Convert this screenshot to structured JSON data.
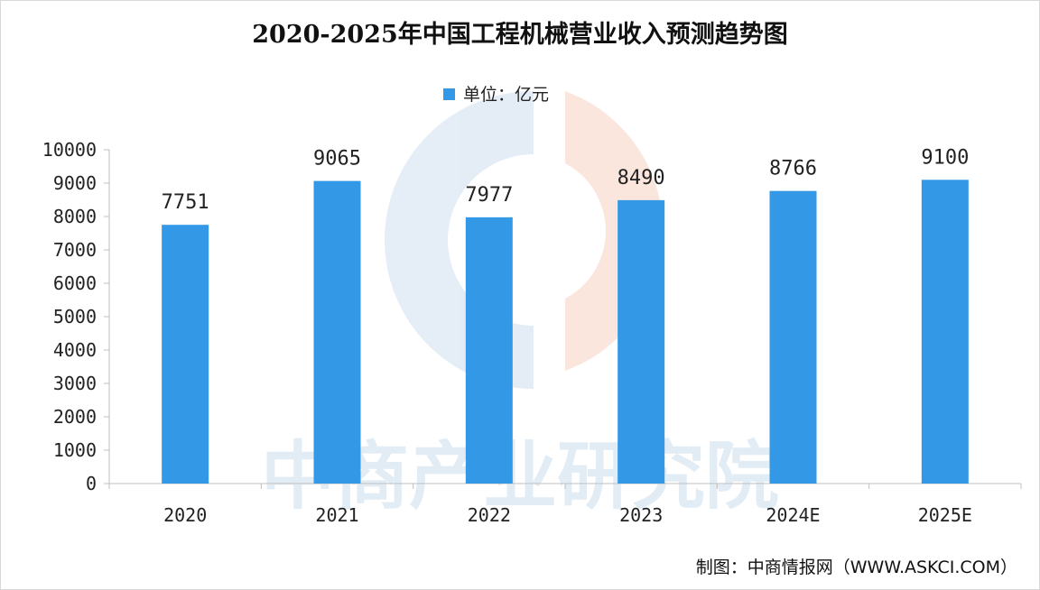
{
  "chart_data": {
    "type": "bar",
    "title": "2020-2025年中国工程机械营业收入预测趋势图",
    "legend": {
      "label": "单位：亿元",
      "position": "top-center"
    },
    "categories": [
      "2020",
      "2021",
      "2022",
      "2023",
      "2024E",
      "2025E"
    ],
    "series": [
      {
        "name": "单位：亿元",
        "values": [
          7751,
          9065,
          7977,
          8490,
          8766,
          9100
        ]
      }
    ],
    "data_labels": [
      "7751",
      "9065",
      "7977",
      "8490",
      "8766",
      "9100"
    ],
    "ylim": [
      0,
      10000
    ],
    "yticks": [
      "0",
      "1000",
      "2000",
      "3000",
      "4000",
      "5000",
      "6000",
      "7000",
      "8000",
      "9000",
      "10000"
    ],
    "xlabel": "",
    "ylabel": "",
    "grid": false,
    "bar_color": "#3399e6"
  },
  "watermark": {
    "text": "中商产业研究院"
  },
  "source": "制图：中商情报网（WWW.ASKCI.COM）"
}
